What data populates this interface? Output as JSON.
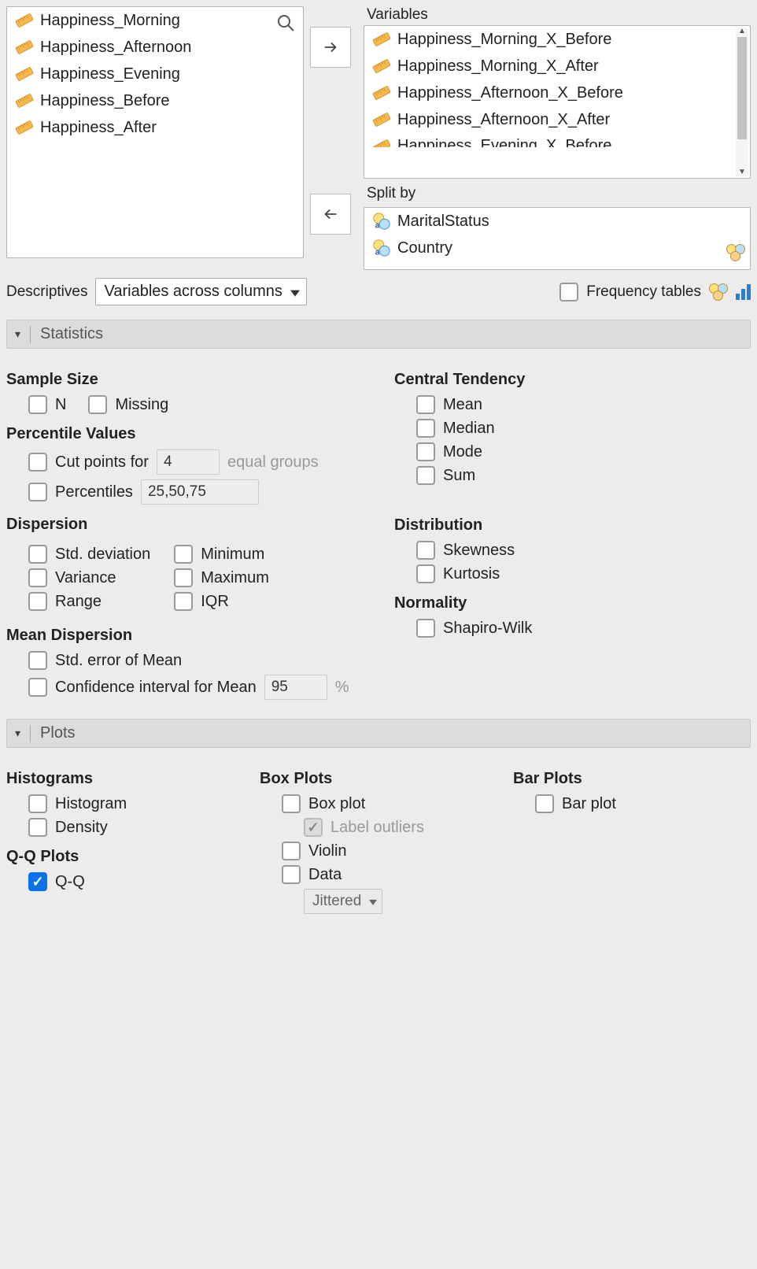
{
  "source_vars": [
    "Happiness_Morning",
    "Happiness_Afternoon",
    "Happiness_Evening",
    "Happiness_Before",
    "Happiness_After"
  ],
  "variables_label": "Variables",
  "variables": [
    "Happiness_Morning_X_Before",
    "Happiness_Morning_X_After",
    "Happiness_Afternoon_X_Before",
    "Happiness_Afternoon_X_After",
    "Happiness_Evening_X_Before"
  ],
  "split_by_label": "Split by",
  "split_by": [
    "MaritalStatus",
    "Country"
  ],
  "descriptives_label": "Descriptives",
  "columns_mode": "Variables across columns",
  "frequency_tables_label": "Frequency tables",
  "sections": {
    "statistics": "Statistics",
    "plots": "Plots"
  },
  "statistics": {
    "sample_size": {
      "title": "Sample Size",
      "n": "N",
      "missing": "Missing"
    },
    "percentile": {
      "title": "Percentile Values",
      "cut_points": "Cut points for",
      "cut_value": "4",
      "equal_groups": "equal groups",
      "percentiles": "Percentiles",
      "percentiles_value": "25,50,75"
    },
    "dispersion": {
      "title": "Dispersion",
      "std": "Std. deviation",
      "variance": "Variance",
      "range": "Range",
      "min": "Minimum",
      "max": "Maximum",
      "iqr": "IQR"
    },
    "mean_dispersion": {
      "title": "Mean Dispersion",
      "se": "Std. error of Mean",
      "ci": "Confidence interval for Mean",
      "ci_value": "95",
      "ci_unit": "%"
    },
    "central": {
      "title": "Central Tendency",
      "mean": "Mean",
      "median": "Median",
      "mode": "Mode",
      "sum": "Sum"
    },
    "distribution": {
      "title": "Distribution",
      "skew": "Skewness",
      "kurt": "Kurtosis"
    },
    "normality": {
      "title": "Normality",
      "shapiro": "Shapiro-Wilk"
    }
  },
  "plots": {
    "hist": {
      "title": "Histograms",
      "histogram": "Histogram",
      "density": "Density"
    },
    "qq": {
      "title": "Q-Q Plots",
      "qq": "Q-Q"
    },
    "box": {
      "title": "Box Plots",
      "box": "Box plot",
      "label_outliers": "Label outliers",
      "violin": "Violin",
      "data": "Data",
      "mode": "Jittered"
    },
    "bar": {
      "title": "Bar Plots",
      "bar": "Bar plot"
    }
  },
  "colors": {
    "bg": "#ececec",
    "panel": "#ffffff",
    "border": "#b5b5b5",
    "section_header_bg": "#dcdcdc",
    "checkbox_checked": "#0b72e7",
    "ruler_fill": "#f5b84f",
    "ruler_stroke": "#d08a1a"
  }
}
